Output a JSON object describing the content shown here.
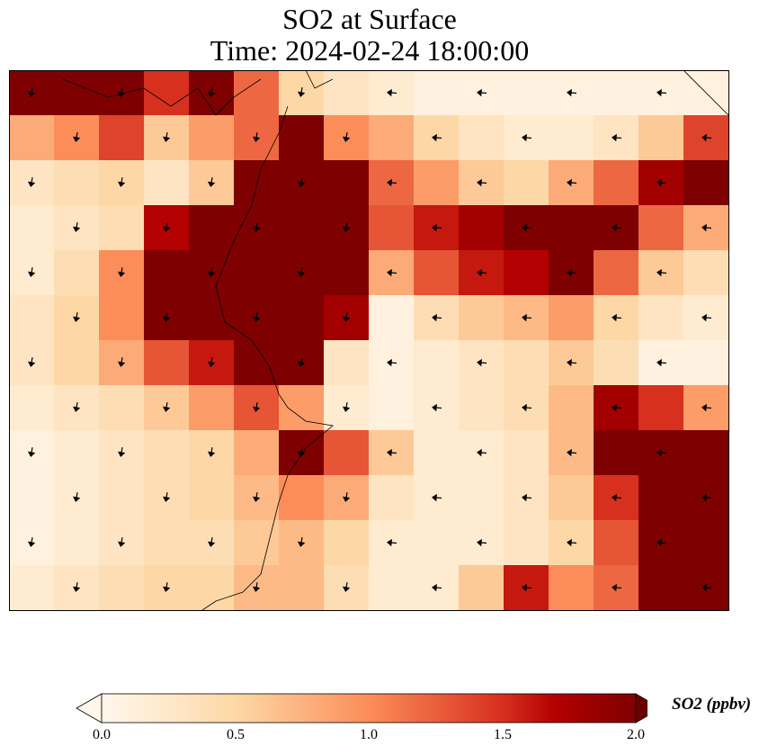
{
  "title": {
    "line1": "SO2 at Surface",
    "line2": "Time: 2024-02-24 18:00:00"
  },
  "chart_data": {
    "type": "heatmap",
    "title": "SO2 at Surface — Time: 2024-02-24 18:00:00",
    "colorbar": {
      "label": "SO2 (ppbv)",
      "range": [
        0.0,
        2.0
      ],
      "ticks": [
        "0.0",
        "0.5",
        "1.0",
        "1.5",
        "2.0"
      ],
      "extend": "both",
      "colormap": [
        "#fff7ec",
        "#fdd8a6",
        "#fc8d59",
        "#d7301f",
        "#b30000",
        "#7f0000"
      ]
    },
    "grid_values": [
      [
        2,
        2,
        2,
        1.5,
        2,
        1.2,
        0.5,
        0.3,
        0.2,
        0.1,
        0.1,
        0.1,
        0.1,
        0.1,
        0.1,
        0.1
      ],
      [
        0.8,
        1.0,
        1.4,
        0.6,
        0.9,
        1.2,
        2,
        1.0,
        0.8,
        0.5,
        0.3,
        0.2,
        0.2,
        0.3,
        0.6,
        1.4
      ],
      [
        0.3,
        0.4,
        0.5,
        0.3,
        0.6,
        2,
        2,
        2,
        1.2,
        0.9,
        0.6,
        0.5,
        0.8,
        1.2,
        1.8,
        2
      ],
      [
        0.2,
        0.3,
        0.4,
        1.7,
        2,
        2,
        2,
        2,
        1.3,
        1.6,
        1.8,
        2,
        2,
        2,
        1.2,
        0.8
      ],
      [
        0.2,
        0.4,
        1.0,
        2,
        2,
        2,
        2,
        2,
        0.8,
        1.3,
        1.6,
        1.7,
        2,
        1.2,
        0.6,
        0.4
      ],
      [
        0.3,
        0.5,
        1.0,
        2,
        2,
        2,
        2,
        1.8,
        0.1,
        0.4,
        0.6,
        0.7,
        0.9,
        0.5,
        0.3,
        0.2
      ],
      [
        0.3,
        0.5,
        0.8,
        1.3,
        1.6,
        2,
        2,
        0.3,
        0.1,
        0.2,
        0.3,
        0.4,
        0.6,
        0.4,
        0.1,
        0.1
      ],
      [
        0.2,
        0.3,
        0.4,
        0.6,
        0.9,
        1.3,
        0.9,
        0.2,
        0.1,
        0.2,
        0.3,
        0.4,
        0.7,
        1.8,
        1.5,
        0.9
      ],
      [
        0.1,
        0.2,
        0.3,
        0.4,
        0.5,
        0.8,
        2,
        1.3,
        0.6,
        0.2,
        0.2,
        0.3,
        0.7,
        2,
        2,
        2
      ],
      [
        0.1,
        0.2,
        0.3,
        0.4,
        0.5,
        0.7,
        1.0,
        0.8,
        0.3,
        0.2,
        0.2,
        0.3,
        0.6,
        1.5,
        2,
        2
      ],
      [
        0.1,
        0.2,
        0.3,
        0.4,
        0.4,
        0.6,
        0.7,
        0.5,
        0.2,
        0.2,
        0.2,
        0.3,
        0.5,
        1.3,
        2,
        2
      ],
      [
        0.2,
        0.3,
        0.4,
        0.5,
        0.5,
        0.7,
        0.7,
        0.4,
        0.2,
        0.2,
        0.6,
        1.6,
        1.0,
        1.2,
        2,
        2
      ]
    ],
    "wind_vectors": "arrows mostly pointing south/southwest in west, west/northwest in east"
  }
}
